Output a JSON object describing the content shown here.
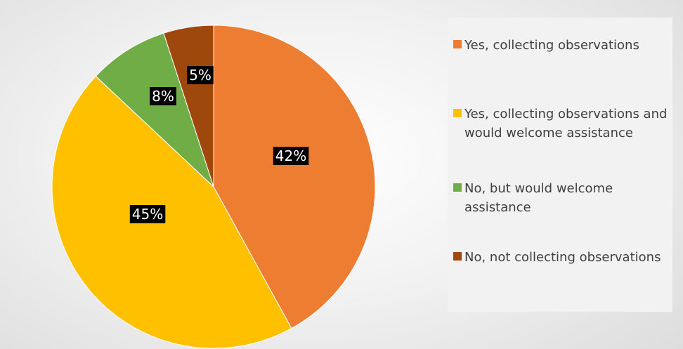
{
  "chart_data": {
    "type": "pie",
    "title": "",
    "start_angle_deg": 0,
    "direction": "clockwise",
    "legend_position": "right",
    "slices": [
      {
        "label": "Yes, collecting observations",
        "value": 42,
        "value_label": "42%",
        "color": "#ED7D31"
      },
      {
        "label": "Yes, collecting observations and would welcome assistance",
        "value": 45,
        "value_label": "45%",
        "color": "#FFC000"
      },
      {
        "label": "No, but would welcome assistance",
        "value": 8,
        "value_label": "8%",
        "color": "#70AD47"
      },
      {
        "label": "No, not collecting observations",
        "value": 5,
        "value_label": "5%",
        "color": "#9E480E"
      }
    ]
  }
}
